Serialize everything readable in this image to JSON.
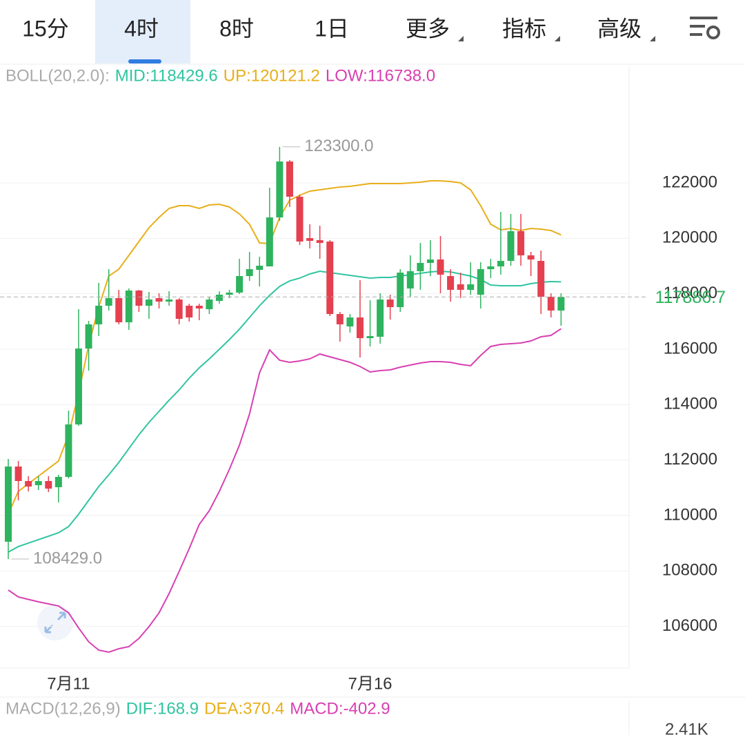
{
  "tabs": [
    "15分",
    "4时",
    "8时",
    "1日",
    "更多",
    "指标",
    "高级"
  ],
  "selected_tab": 1,
  "chart_data": {
    "type": "candlestick",
    "indicator": {
      "name": "BOLL(20,2.0):",
      "items": [
        {
          "label": "MID:118429.6",
          "color": "#2fc4a0"
        },
        {
          "label": "UP:120121.2",
          "color": "#e8ae1a"
        },
        {
          "label": "LOW:116738.0",
          "color": "#d83fb1"
        }
      ]
    },
    "categories": [
      null,
      null,
      null,
      null,
      null,
      null,
      "7月11",
      null,
      null,
      null,
      null,
      null,
      null,
      null,
      null,
      null,
      null,
      null,
      null,
      null,
      null,
      null,
      null,
      null,
      null,
      null,
      null,
      null,
      null,
      null,
      null,
      null,
      null,
      null,
      null,
      null,
      "7月16",
      null,
      null,
      null,
      null,
      null,
      null,
      null,
      null,
      null,
      null,
      null,
      null,
      null,
      null,
      null,
      null,
      null,
      null,
      null
    ],
    "open": [
      109052,
      111766,
      111243,
      111094,
      111243,
      111020,
      111393,
      113285,
      116024,
      116896,
      117568,
      117842,
      116970,
      118116,
      117568,
      117842,
      117717,
      117792,
      117568,
      117568,
      117443,
      117742,
      117966,
      118041,
      118638,
      118862,
      118987,
      120755,
      122772,
      121502,
      120008,
      119933,
      119883,
      117269,
      116821,
      117145,
      116398,
      116448,
      117792,
      117518,
      118190,
      118813,
      119112,
      119236,
      118638,
      118340,
      118141,
      117966,
      118887,
      118987,
      119186,
      120257,
      119386,
      119186,
      117892,
      117394
    ],
    "high": [
      112040,
      111965,
      111418,
      111418,
      111418,
      111468,
      113783,
      117443,
      117020,
      118390,
      118887,
      118141,
      118190,
      118141,
      118066,
      118016,
      118091,
      117842,
      117642,
      117642,
      117892,
      118091,
      118141,
      119261,
      119510,
      119336,
      121826,
      123300,
      122822,
      121577,
      120506,
      120456,
      119933,
      117344,
      117269,
      118489,
      117767,
      118016,
      117966,
      118887,
      119386,
      119834,
      119934,
      120083,
      118887,
      118763,
      119137,
      119137,
      119261,
      120954,
      120879,
      120879,
      119510,
      119560,
      118016,
      118016
    ],
    "low": [
      108429,
      110546,
      110870,
      110920,
      110845,
      110471,
      111343,
      113235,
      115227,
      116472,
      117394,
      116896,
      116697,
      117344,
      117095,
      117468,
      117568,
      116896,
      116995,
      117045,
      117269,
      117642,
      117842,
      117991,
      118464,
      118265,
      119037,
      120630,
      121129,
      119759,
      119635,
      119261,
      117195,
      116273,
      116597,
      115700,
      116099,
      116199,
      117070,
      117344,
      117892,
      118141,
      118638,
      118016,
      117717,
      117842,
      117966,
      117468,
      118564,
      118689,
      119012,
      119012,
      118638,
      117269,
      117145,
      116846
    ],
    "close": [
      111766,
      111243,
      111044,
      111243,
      110970,
      111393,
      113285,
      116024,
      116896,
      117568,
      117842,
      116970,
      118116,
      117568,
      117792,
      117717,
      117792,
      117095,
      117145,
      117468,
      117792,
      117966,
      118041,
      118638,
      118887,
      119012,
      120755,
      122772,
      121502,
      119883,
      119908,
      119834,
      117269,
      116896,
      117145,
      116398,
      116473,
      117792,
      117518,
      118763,
      118813,
      119112,
      119236,
      118689,
      118141,
      118141,
      118340,
      118887,
      118987,
      119186,
      120257,
      119386,
      119236,
      117892,
      117394,
      117886.7
    ],
    "up_color": "#2eb35e",
    "down_color": "#e5404f",
    "lines": [
      {
        "color": "#e8ae1a",
        "values": [
          110048,
          110870,
          111144,
          111418,
          111692,
          111965,
          112912,
          114406,
          116149,
          117518,
          118638,
          118887,
          119385,
          119883,
          120382,
          120755,
          121079,
          121178,
          121178,
          121079,
          121203,
          121228,
          121129,
          120880,
          120506,
          119834,
          119809,
          120755,
          121378,
          121552,
          121701,
          121751,
          121801,
          121851,
          121876,
          121925,
          121975,
          121975,
          121975,
          121975,
          122000,
          122025,
          122075,
          122075,
          122050,
          122000,
          121751,
          121178,
          120506,
          120307,
          120357,
          120282,
          120357,
          120332,
          120282,
          120121.2
        ]
      },
      {
        "color": "#2fc4a0",
        "values": [
          108679,
          108878,
          109003,
          109127,
          109252,
          109376,
          109600,
          110048,
          110546,
          111044,
          111467,
          111916,
          112414,
          112912,
          113360,
          113758,
          114157,
          114530,
          114953,
          115327,
          115651,
          115999,
          116348,
          116722,
          117145,
          117568,
          117942,
          118265,
          118464,
          118564,
          118713,
          118813,
          118763,
          118713,
          118663,
          118614,
          118564,
          118589,
          118589,
          118638,
          118688,
          118738,
          118788,
          118813,
          118788,
          118713,
          118638,
          118514,
          118315,
          118290,
          118290,
          118290,
          118365,
          118414,
          118439,
          118429.6
        ]
      },
      {
        "color": "#d83fb1",
        "values": [
          107309,
          107060,
          106973,
          106886,
          106811,
          106736,
          106487,
          105940,
          105442,
          105143,
          105068,
          105193,
          105267,
          105566,
          105989,
          106487,
          107184,
          107981,
          108803,
          109676,
          110172,
          110870,
          111666,
          112538,
          113659,
          115153,
          115974,
          115601,
          115526,
          115576,
          115651,
          115825,
          115725,
          115626,
          115526,
          115377,
          115177,
          115227,
          115252,
          115352,
          115426,
          115501,
          115551,
          115551,
          115526,
          115452,
          115402,
          115775,
          116099,
          116174,
          116198,
          116223,
          116298,
          116448,
          116497,
          116738.0
        ]
      }
    ],
    "ylim": [
      104495,
      126233
    ],
    "yticks": [
      106000,
      108000,
      110000,
      112000,
      114000,
      116000,
      118000,
      120000,
      122000
    ],
    "grid": true,
    "current_price": {
      "value": 117886.7,
      "label": "117886.7",
      "color": "#2eb35e"
    },
    "annotations": [
      {
        "value": 123300,
        "label": "123300.0"
      },
      {
        "value": 108429,
        "label": "108429.0"
      }
    ]
  },
  "macd": {
    "name": "MACD(12,26,9)",
    "items": [
      {
        "label": "DIF:168.9",
        "color": "#2fc4a0"
      },
      {
        "label": "DEA:370.4",
        "color": "#e8ae1a"
      },
      {
        "label": "MACD:-402.9",
        "color": "#d83fb1"
      }
    ],
    "axis_label": "2.41K"
  }
}
